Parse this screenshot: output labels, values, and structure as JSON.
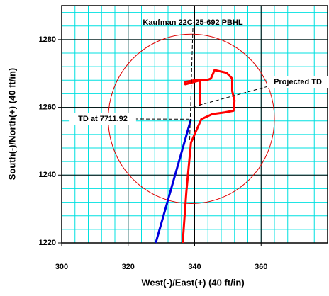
{
  "chart_data": {
    "type": "line",
    "x_label": "West(-)/East(+) (40 ft/in)",
    "y_label": "South(-)/North(+) (40 ft/in)",
    "xlim": [
      300,
      380
    ],
    "ylim": [
      1220,
      1290
    ],
    "xticks": [
      300,
      320,
      340,
      360
    ],
    "yticks": [
      1220,
      1240,
      1260,
      1280
    ],
    "grid": true,
    "minor_grid_step": 4,
    "grid_color": "#00e0e0",
    "series": [
      {
        "color": "#ff0000",
        "x": [
          336.4,
          337.5,
          338.9,
          342,
          345.3,
          349,
          351.7,
          352,
          351.3,
          351.3,
          349.6,
          346,
          344.9,
          343.6,
          341.7,
          340,
          337.2,
          337.2,
          341.7,
          341.7
        ],
        "y": [
          1220,
          1235,
          1249.6,
          1256.5,
          1258,
          1258.5,
          1259,
          1262,
          1264.8,
          1268.5,
          1270.2,
          1271,
          1268.5,
          1268,
          1268,
          1268,
          1267.5,
          1266.8,
          1268,
          1260.6
        ]
      },
      {
        "color": "#0000dd",
        "x": [
          328.3,
          338.9
        ],
        "y": [
          1220,
          1256.5
        ]
      }
    ],
    "circle": {
      "x": 339,
      "y": 1256.6,
      "r": 25,
      "color": "#dd0000"
    },
    "annotations": [
      {
        "text": "Kaufman 22C-25-692 PBHL",
        "x": 338.5,
        "y": 1250
      },
      {
        "text": "Projected TD",
        "x": 339,
        "y": 1260
      },
      {
        "text": "TD at 7711.92",
        "x": 338.9,
        "y": 1256.5
      }
    ]
  }
}
